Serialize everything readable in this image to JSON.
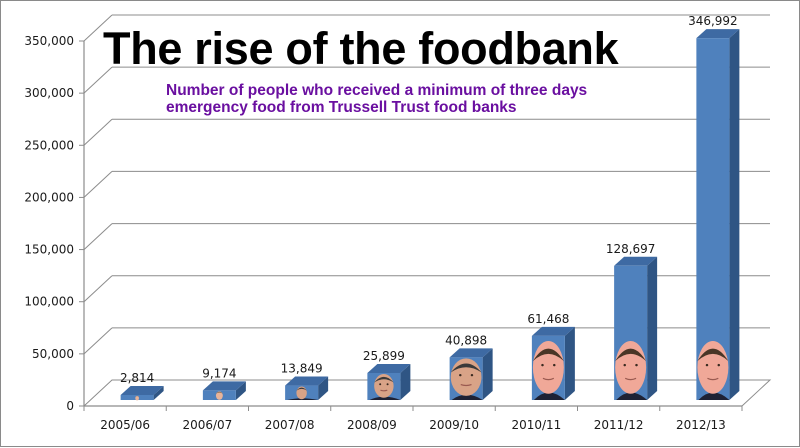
{
  "chart_data": {
    "type": "bar",
    "style": "3d-column",
    "title": "The rise of the foodbank",
    "subtitle": "Number of people who received a minimum of three days emergency food from Trussell Trust food banks",
    "xlabel": "",
    "ylabel": "",
    "categories": [
      "2005/06",
      "2006/07",
      "2007/08",
      "2008/09",
      "2009/10",
      "2010/11",
      "2011/12",
      "2012/13"
    ],
    "values": [
      2814,
      9174,
      13849,
      25899,
      40898,
      61468,
      128697,
      346992
    ],
    "data_labels": [
      "2,814",
      "9,174",
      "13,849",
      "25,899",
      "40,898",
      "61,468",
      "128,697",
      "346,992"
    ],
    "bar_images": [
      "blair-face",
      "blair-face",
      "brown-face",
      "brown-face",
      "brown-face",
      "cameron-face",
      "cameron-face",
      "cameron-face"
    ],
    "ylim": [
      0,
      350000
    ],
    "yticks": [
      0,
      50000,
      100000,
      150000,
      200000,
      250000,
      300000,
      350000
    ],
    "ytick_labels": [
      "0",
      "50,000",
      "100,000",
      "150,000",
      "200,000",
      "250,000",
      "300,000",
      "350,000"
    ],
    "grid": true,
    "legend": "none",
    "colors": {
      "bar_front": "#4f81bd",
      "bar_side": "#2f5584",
      "bar_top": "#3e6aa3",
      "grid": "#8c8c8c",
      "title": "#000000",
      "subtitle": "#6a0fa0"
    }
  }
}
